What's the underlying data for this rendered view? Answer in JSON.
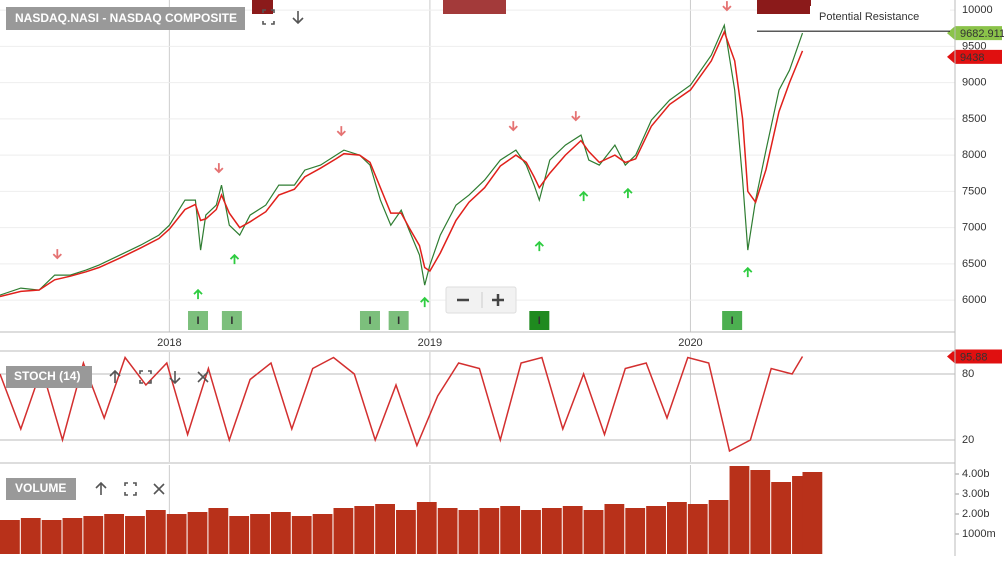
{
  "chart_data": [
    {
      "type": "line",
      "title": "NASDAQ.NASI - NASDAQ COMPOSITE",
      "x": [
        2017.35,
        2017.43,
        2017.5,
        2017.56,
        2017.62,
        2017.68,
        2017.73,
        2017.81,
        2017.89,
        2017.96,
        2018.0,
        2018.06,
        2018.1,
        2018.12,
        2018.14,
        2018.18,
        2018.2,
        2018.23,
        2018.27,
        2018.31,
        2018.37,
        2018.42,
        2018.48,
        2018.52,
        2018.58,
        2018.64,
        2018.67,
        2018.73,
        2018.77,
        2018.81,
        2018.85,
        2018.89,
        2018.92,
        2018.96,
        2018.98,
        2019.0,
        2019.04,
        2019.1,
        2019.15,
        2019.21,
        2019.27,
        2019.33,
        2019.37,
        2019.4,
        2019.42,
        2019.46,
        2019.52,
        2019.58,
        2019.61,
        2019.65,
        2019.71,
        2019.75,
        2019.79,
        2019.85,
        2019.92,
        2020.0,
        2020.08,
        2020.13,
        2020.17,
        2020.2,
        2020.22,
        2020.25,
        2020.29,
        2020.34,
        2020.38,
        2020.43
      ],
      "xlim": [
        2017.35,
        2021.0
      ],
      "xticks": [
        2018,
        2019,
        2020
      ],
      "ylim": [
        5560,
        10140
      ],
      "yticks": [
        6000,
        6500,
        7000,
        7500,
        8000,
        8500,
        9000,
        9500,
        10000
      ],
      "grid": true,
      "series": [
        {
          "color": "#2f7d32",
          "values": [
            6069,
            6166,
            6138,
            6345,
            6345,
            6414,
            6483,
            6621,
            6759,
            6897,
            7034,
            7379,
            7379,
            6690,
            7172,
            7310,
            7586,
            7034,
            6897,
            7172,
            7310,
            7586,
            7586,
            7793,
            7862,
            8000,
            8069,
            8000,
            7862,
            7379,
            7034,
            7241,
            6966,
            6621,
            6207,
            6483,
            6897,
            7310,
            7448,
            7655,
            7931,
            8069,
            7862,
            7586,
            7379,
            7931,
            8138,
            8276,
            7931,
            7862,
            8138,
            7862,
            8000,
            8483,
            8759,
            8966,
            9379,
            9793,
            8897,
            7655,
            6690,
            7379,
            8069,
            8897,
            9172,
            9682.911
          ]
        },
        {
          "color": "#e0201b",
          "values": [
            6050,
            6120,
            6140,
            6280,
            6330,
            6390,
            6450,
            6580,
            6720,
            6850,
            6980,
            7250,
            7320,
            7100,
            7120,
            7250,
            7450,
            7200,
            7000,
            7080,
            7220,
            7450,
            7530,
            7700,
            7820,
            7950,
            8020,
            8000,
            7900,
            7550,
            7200,
            7200,
            7000,
            6750,
            6450,
            6400,
            6650,
            7100,
            7350,
            7550,
            7850,
            8000,
            7900,
            7700,
            7550,
            7750,
            8000,
            8200,
            8050,
            7900,
            8000,
            7900,
            7950,
            8400,
            8700,
            8900,
            9300,
            9700,
            9300,
            8500,
            7500,
            7350,
            7800,
            8600,
            9000,
            9438
          ]
        }
      ],
      "annotation": {
        "text": "Potential Resistance",
        "y": 9710
      },
      "sell_signals": {
        "color": "#e57373",
        "x": [
          2017.57,
          2018.19,
          2018.66,
          2019.32,
          2019.56,
          2020.14
        ],
        "y": [
          6579,
          7766,
          8276,
          8345,
          8483,
          10000
        ]
      },
      "buy_signals": {
        "color": "#2ecc40",
        "x": [
          2018.11,
          2018.25,
          2018.98,
          2019.42,
          2019.59,
          2019.76,
          2020.22
        ],
        "y": [
          6138,
          6621,
          6028,
          6800,
          7490,
          7531,
          6441
        ]
      },
      "events": {
        "label": "I",
        "x": [
          2018.11,
          2018.24,
          2018.77,
          2018.88,
          2019.42,
          2020.16
        ],
        "colors": [
          "#7cbf7c",
          "#7cbf7c",
          "#7cbf7c",
          "#7cbf7c",
          "#1f8a1f",
          "#4caf50"
        ]
      }
    },
    {
      "type": "line",
      "title": "STOCH (14)",
      "x": [
        2017.35,
        2017.43,
        2017.51,
        2017.59,
        2017.67,
        2017.75,
        2017.83,
        2017.91,
        2017.99,
        2018.07,
        2018.15,
        2018.23,
        2018.31,
        2018.39,
        2018.47,
        2018.55,
        2018.63,
        2018.71,
        2018.79,
        2018.87,
        2018.95,
        2019.03,
        2019.11,
        2019.19,
        2019.27,
        2019.35,
        2019.43,
        2019.51,
        2019.59,
        2019.67,
        2019.75,
        2019.83,
        2019.91,
        2019.99,
        2020.07,
        2020.15,
        2020.23,
        2020.31,
        2020.39,
        2020.43
      ],
      "xlim": [
        2017.35,
        2021.0
      ],
      "ylim": [
        0,
        100
      ],
      "yticks": [
        20,
        80
      ],
      "series": [
        {
          "color": "#d32f2f",
          "values": [
            80,
            30,
            85,
            20,
            90,
            40,
            95,
            70,
            90,
            25,
            85,
            20,
            75,
            90,
            30,
            85,
            95,
            80,
            20,
            70,
            15,
            60,
            90,
            85,
            20,
            90,
            95,
            30,
            80,
            25,
            85,
            90,
            40,
            95,
            90,
            10,
            20,
            85,
            80,
            95.88
          ]
        }
      ]
    },
    {
      "type": "bar",
      "title": "VOLUME",
      "x": [
        2017.35,
        2017.43,
        2017.51,
        2017.59,
        2017.67,
        2017.75,
        2017.83,
        2017.91,
        2017.99,
        2018.07,
        2018.15,
        2018.23,
        2018.31,
        2018.39,
        2018.47,
        2018.55,
        2018.63,
        2018.71,
        2018.79,
        2018.87,
        2018.95,
        2019.03,
        2019.11,
        2019.19,
        2019.27,
        2019.35,
        2019.43,
        2019.51,
        2019.59,
        2019.67,
        2019.75,
        2019.83,
        2019.91,
        2019.99,
        2020.07,
        2020.15,
        2020.23,
        2020.31,
        2020.39,
        2020.43
      ],
      "xlim": [
        2017.35,
        2021.0
      ],
      "ylim": [
        0,
        4.45
      ],
      "yticks": [
        {
          "value": 1,
          "label": "1000m"
        },
        {
          "value": 2,
          "label": "2.00b"
        },
        {
          "value": 3,
          "label": "3.00b"
        },
        {
          "value": 4,
          "label": "4.00b"
        }
      ],
      "color": "#b8311a",
      "values": [
        1.7,
        1.8,
        1.7,
        1.8,
        1.9,
        2.0,
        1.9,
        2.2,
        2.0,
        2.1,
        2.3,
        1.9,
        2.0,
        2.1,
        1.9,
        2.0,
        2.3,
        2.4,
        2.5,
        2.2,
        2.6,
        2.3,
        2.2,
        2.3,
        2.4,
        2.2,
        2.3,
        2.4,
        2.2,
        2.5,
        2.3,
        2.4,
        2.6,
        2.5,
        2.7,
        4.4,
        4.2,
        3.6,
        3.9,
        4.1
      ]
    }
  ]
}
